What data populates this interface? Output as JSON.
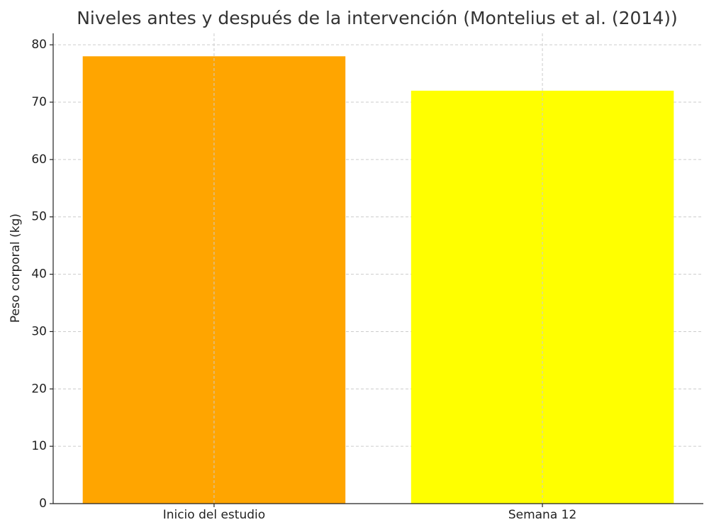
{
  "chart_data": {
    "type": "bar",
    "title": "Niveles antes y después de la intervención (Montelius et al. (2014))",
    "y_label": "Peso corporal (kg)",
    "categories": [
      "Inicio del estudio",
      "Semana 12"
    ],
    "values": [
      78,
      72
    ],
    "colors": [
      "#ffa500",
      "#ffff00"
    ],
    "ylim": [
      0,
      82
    ],
    "yticks": [
      0,
      10,
      20,
      30,
      40,
      50,
      60,
      70,
      80
    ],
    "grid": true
  }
}
